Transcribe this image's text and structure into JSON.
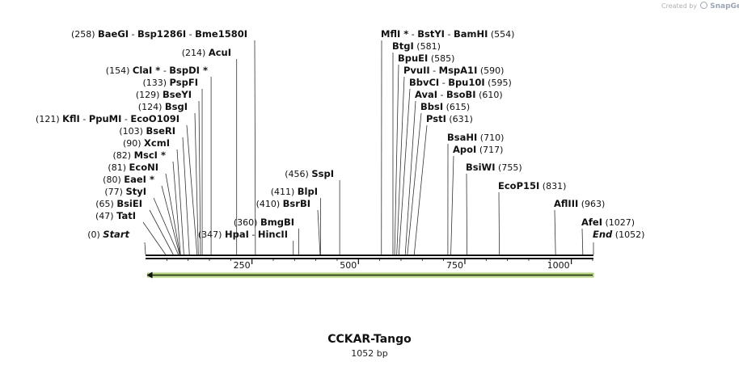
{
  "watermark": {
    "created_by": "Created by",
    "brand": "SnapGene"
  },
  "title": "CCKAR-Tango",
  "subtitle": "1052 bp",
  "colors": {
    "feature_fill": "#c8f07a",
    "feature_stroke": "#6aa12a",
    "arrow": "#111111",
    "line": "#111111"
  },
  "map": {
    "length": 1052,
    "ticks": [
      250,
      500,
      750,
      1000
    ],
    "feature": {
      "start": 1,
      "end": 1052,
      "direction": "reverse"
    },
    "labels": [
      {
        "pos": "(0)",
        "parts": [
          {
            "n": "Start",
            "i": true
          }
        ],
        "end": true
      },
      {
        "pos": "(47)",
        "parts": [
          {
            "n": "TatI"
          }
        ]
      },
      {
        "pos": "(65)",
        "parts": [
          {
            "n": "BsiEI"
          }
        ]
      },
      {
        "pos": "(77)",
        "parts": [
          {
            "n": "StyI"
          }
        ]
      },
      {
        "pos": "(80)",
        "parts": [
          {
            "n": "EaeI",
            "star": true
          }
        ]
      },
      {
        "pos": "(81)",
        "parts": [
          {
            "n": "EcoNI"
          }
        ]
      },
      {
        "pos": "(82)",
        "parts": [
          {
            "n": "MscI",
            "star": true
          }
        ]
      },
      {
        "pos": "(90)",
        "parts": [
          {
            "n": "XcmI"
          }
        ]
      },
      {
        "pos": "(103)",
        "parts": [
          {
            "n": "BseRI"
          }
        ]
      },
      {
        "pos": "(121)",
        "parts": [
          {
            "n": "KflI"
          },
          {
            "n": "PpuMI"
          },
          {
            "n": "EcoO109I"
          }
        ]
      },
      {
        "pos": "(124)",
        "parts": [
          {
            "n": "BsgI"
          }
        ]
      },
      {
        "pos": "(129)",
        "parts": [
          {
            "n": "BseYI"
          }
        ]
      },
      {
        "pos": "(133)",
        "parts": [
          {
            "n": "PspFI"
          }
        ]
      },
      {
        "pos": "(154)",
        "parts": [
          {
            "n": "ClaI",
            "star": true
          },
          {
            "n": "BspDI",
            "star": true
          }
        ]
      },
      {
        "pos": "(214)",
        "parts": [
          {
            "n": "AcuI"
          }
        ]
      },
      {
        "pos": "(258)",
        "parts": [
          {
            "n": "BaeGI"
          },
          {
            "n": "Bsp1286I"
          },
          {
            "n": "Bme1580I"
          }
        ]
      },
      {
        "pos": "(347)",
        "parts": [
          {
            "n": "HpaI"
          },
          {
            "n": "HincII"
          }
        ]
      },
      {
        "pos": "(360)",
        "parts": [
          {
            "n": "BmgBI"
          }
        ]
      },
      {
        "pos": "(410)",
        "parts": [
          {
            "n": "BsrBI"
          }
        ]
      },
      {
        "pos": "(411)",
        "parts": [
          {
            "n": "BlpI"
          }
        ]
      },
      {
        "pos": "(456)",
        "parts": [
          {
            "n": "SspI"
          }
        ]
      },
      {
        "pos": "(554)",
        "parts": [
          {
            "n": "MflI",
            "star": true
          },
          {
            "n": "BstYI"
          },
          {
            "n": "BamHI"
          }
        ],
        "posRight": true
      },
      {
        "pos": "(581)",
        "parts": [
          {
            "n": "BtgI"
          }
        ],
        "posRight": true
      },
      {
        "pos": "(585)",
        "parts": [
          {
            "n": "BpuEI"
          }
        ],
        "posRight": true
      },
      {
        "pos": "(590)",
        "parts": [
          {
            "n": "PvuII"
          },
          {
            "n": "MspA1I"
          }
        ],
        "posRight": true
      },
      {
        "pos": "(595)",
        "parts": [
          {
            "n": "BbvCI"
          },
          {
            "n": "Bpu10I"
          }
        ],
        "posRight": true
      },
      {
        "pos": "(610)",
        "parts": [
          {
            "n": "AvaI"
          },
          {
            "n": "BsoBI"
          }
        ],
        "posRight": true
      },
      {
        "pos": "(615)",
        "parts": [
          {
            "n": "BbsI"
          }
        ],
        "posRight": true
      },
      {
        "pos": "(631)",
        "parts": [
          {
            "n": "PstI"
          }
        ],
        "posRight": true
      },
      {
        "pos": "(710)",
        "parts": [
          {
            "n": "BsaHI"
          }
        ],
        "posRight": true
      },
      {
        "pos": "(717)",
        "parts": [
          {
            "n": "ApoI"
          }
        ],
        "posRight": true
      },
      {
        "pos": "(755)",
        "parts": [
          {
            "n": "BsiWI"
          }
        ],
        "posRight": true
      },
      {
        "pos": "(831)",
        "parts": [
          {
            "n": "EcoP15I"
          }
        ],
        "posRight": true
      },
      {
        "pos": "(963)",
        "parts": [
          {
            "n": "AflIII"
          }
        ],
        "posRight": true
      },
      {
        "pos": "(1027)",
        "parts": [
          {
            "n": "AfeI"
          }
        ],
        "posRight": true
      },
      {
        "pos": "(1052)",
        "parts": [
          {
            "n": "End",
            "i": true
          }
        ],
        "posRight": true,
        "end": true
      }
    ]
  }
}
